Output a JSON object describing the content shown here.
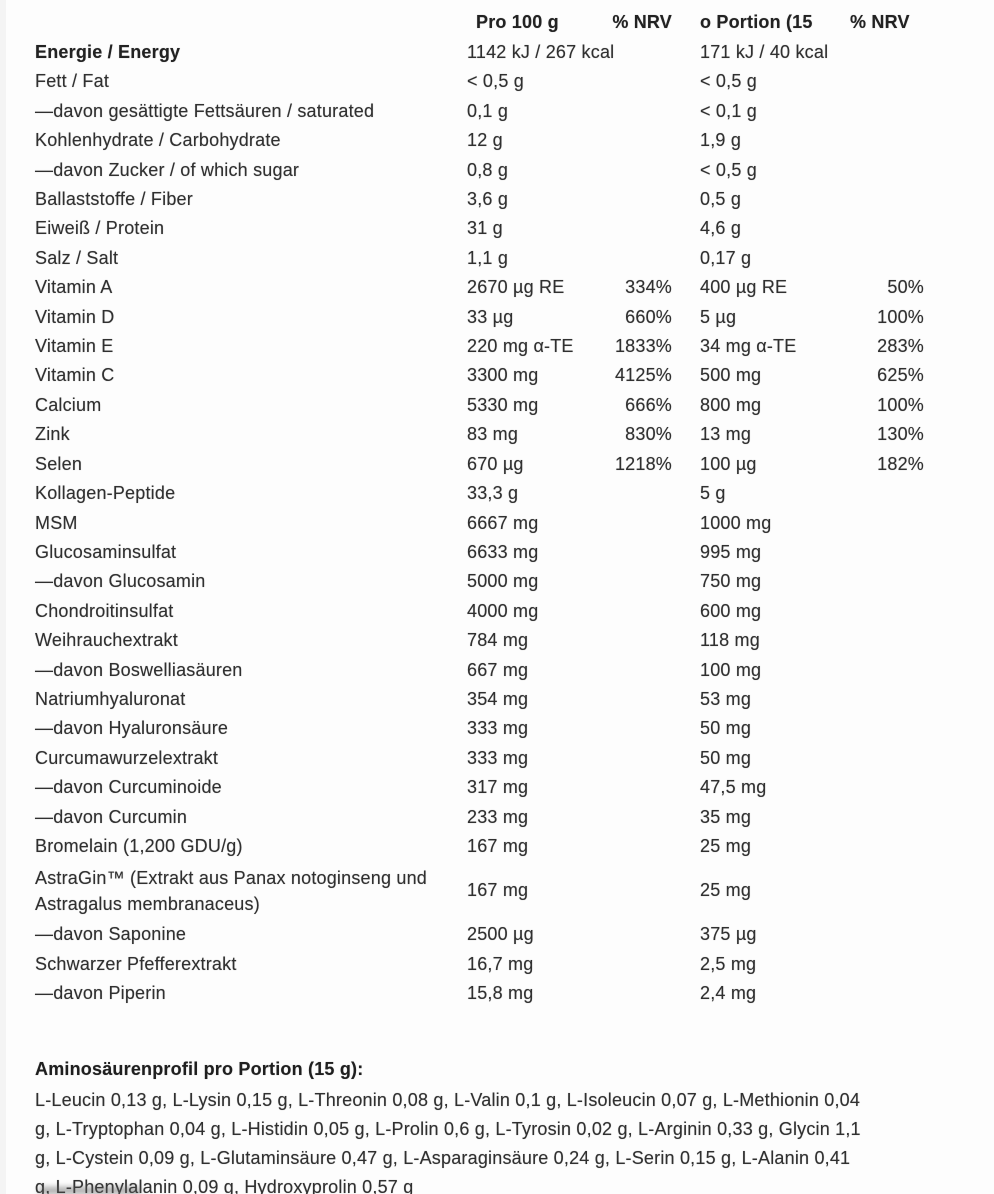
{
  "table": {
    "headers": {
      "per100g": "Pro 100 g",
      "nrv100g": "% NRV",
      "perPortion": "o Portion (15",
      "nrvPortion": "% NRV"
    },
    "rows": [
      {
        "label": "Energie / Energy",
        "bold": true,
        "per100g": "1142 kJ / 267 kcal",
        "nrv100g": "",
        "perPortion": "171 kJ / 40 kcal",
        "nrvPortion": ""
      },
      {
        "label": "Fett / Fat",
        "per100g": "< 0,5 g",
        "nrv100g": "",
        "perPortion": "< 0,5 g",
        "nrvPortion": ""
      },
      {
        "label": "—davon gesättigte Fettsäuren / saturated",
        "per100g": "0,1 g",
        "nrv100g": "",
        "perPortion": "< 0,1 g",
        "nrvPortion": ""
      },
      {
        "label": "Kohlenhydrate / Carbohydrate",
        "per100g": "12 g",
        "nrv100g": "",
        "perPortion": "1,9 g",
        "nrvPortion": ""
      },
      {
        "label": "—davon Zucker / of which sugar",
        "per100g": "0,8 g",
        "nrv100g": "",
        "perPortion": "< 0,5 g",
        "nrvPortion": ""
      },
      {
        "label": "Ballaststoffe / Fiber",
        "per100g": "3,6 g",
        "nrv100g": "",
        "perPortion": "0,5 g",
        "nrvPortion": ""
      },
      {
        "label": "Eiweiß / Protein",
        "per100g": "31 g",
        "nrv100g": "",
        "perPortion": "4,6 g",
        "nrvPortion": ""
      },
      {
        "label": "Salz / Salt",
        "per100g": "1,1 g",
        "nrv100g": "",
        "perPortion": "0,17 g",
        "nrvPortion": ""
      },
      {
        "label": "Vitamin A",
        "per100g": "2670 µg RE",
        "nrv100g": "334%",
        "perPortion": "400 µg RE",
        "nrvPortion": "50%"
      },
      {
        "label": "Vitamin D",
        "per100g": "33 µg",
        "nrv100g": "660%",
        "perPortion": "5 µg",
        "nrvPortion": "100%"
      },
      {
        "label": "Vitamin E",
        "per100g": "220 mg α-TE",
        "nrv100g": "1833%",
        "perPortion": "34 mg α-TE",
        "nrvPortion": "283%"
      },
      {
        "label": "Vitamin C",
        "per100g": "3300 mg",
        "nrv100g": "4125%",
        "perPortion": "500 mg",
        "nrvPortion": "625%"
      },
      {
        "label": "Calcium",
        "per100g": "5330 mg",
        "nrv100g": "666%",
        "perPortion": "800 mg",
        "nrvPortion": "100%"
      },
      {
        "label": "Zink",
        "per100g": "83 mg",
        "nrv100g": "830%",
        "perPortion": "13 mg",
        "nrvPortion": "130%"
      },
      {
        "label": "Selen",
        "per100g": "670 µg",
        "nrv100g": "1218%",
        "perPortion": "100 µg",
        "nrvPortion": "182%"
      },
      {
        "label": "Kollagen-Peptide",
        "per100g": "33,3 g",
        "nrv100g": "",
        "perPortion": "5 g",
        "nrvPortion": ""
      },
      {
        "label": "MSM",
        "per100g": "6667 mg",
        "nrv100g": "",
        "perPortion": "1000 mg",
        "nrvPortion": ""
      },
      {
        "label": "Glucosaminsulfat",
        "per100g": "6633 mg",
        "nrv100g": "",
        "perPortion": "995 mg",
        "nrvPortion": ""
      },
      {
        "label": "—davon Glucosamin",
        "per100g": "5000 mg",
        "nrv100g": "",
        "perPortion": "750 mg",
        "nrvPortion": ""
      },
      {
        "label": "Chondroitinsulfat",
        "per100g": "4000 mg",
        "nrv100g": "",
        "perPortion": "600 mg",
        "nrvPortion": ""
      },
      {
        "label": "Weihrauchextrakt",
        "per100g": "784 mg",
        "nrv100g": "",
        "perPortion": "118 mg",
        "nrvPortion": ""
      },
      {
        "label": "—davon Boswelliasäuren",
        "per100g": "667 mg",
        "nrv100g": "",
        "perPortion": "100 mg",
        "nrvPortion": ""
      },
      {
        "label": "Natriumhyaluronat",
        "per100g": "354 mg",
        "nrv100g": "",
        "perPortion": "53 mg",
        "nrvPortion": ""
      },
      {
        "label": "—davon Hyaluronsäure",
        "per100g": "333 mg",
        "nrv100g": "",
        "perPortion": "50 mg",
        "nrvPortion": ""
      },
      {
        "label": "Curcumawurzelextrakt",
        "per100g": "333 mg",
        "nrv100g": "",
        "perPortion": "50 mg",
        "nrvPortion": ""
      },
      {
        "label": "—davon Curcuminoide",
        "per100g": "317 mg",
        "nrv100g": "",
        "perPortion": "47,5 mg",
        "nrvPortion": ""
      },
      {
        "label": "—davon Curcumin",
        "per100g": "233 mg",
        "nrv100g": "",
        "perPortion": "35 mg",
        "nrvPortion": ""
      },
      {
        "label": "Bromelain (1,200 GDU/g)",
        "per100g": "167 mg",
        "nrv100g": "",
        "perPortion": "25 mg",
        "nrvPortion": ""
      },
      {
        "label": "AstraGin™ (Extrakt aus Panax notoginseng und Astragalus membranaceus)",
        "per100g": "167 mg",
        "nrv100g": "",
        "perPortion": "25 mg",
        "nrvPortion": ""
      },
      {
        "label": "—davon Saponine",
        "per100g": "2500 µg",
        "nrv100g": "",
        "perPortion": "375 µg",
        "nrvPortion": ""
      },
      {
        "label": "Schwarzer Pfefferextrakt",
        "per100g": "16,7 mg",
        "nrv100g": "",
        "perPortion": "2,5 mg",
        "nrvPortion": ""
      },
      {
        "label": "—davon Piperin",
        "per100g": "15,8 mg",
        "nrv100g": "",
        "perPortion": "2,4 mg",
        "nrvPortion": ""
      }
    ]
  },
  "amino": {
    "heading": "Aminosäurenprofil pro Portion (15 g):",
    "lines": [
      "L-Leucin 0,13 g, L-Lysin 0,15 g, L-Threonin 0,08 g, L-Valin 0,1 g, L-Isoleucin 0,07 g, L-Methionin 0,04",
      "g, L-Tryptophan 0,04 g, L-Histidin 0,05 g, L-Prolin 0,6 g, L-Tyrosin 0,02 g, L-Arginin 0,33 g, Glycin 1,1",
      "g, L-Cystein 0,09 g, L-Glutaminsäure 0,47 g, L-Asparaginsäure 0,24 g, L-Serin 0,15 g, L-Alanin 0,41",
      "g, L-Phenylalanin 0,09 g, Hydroxyprolin 0,57 g"
    ]
  }
}
